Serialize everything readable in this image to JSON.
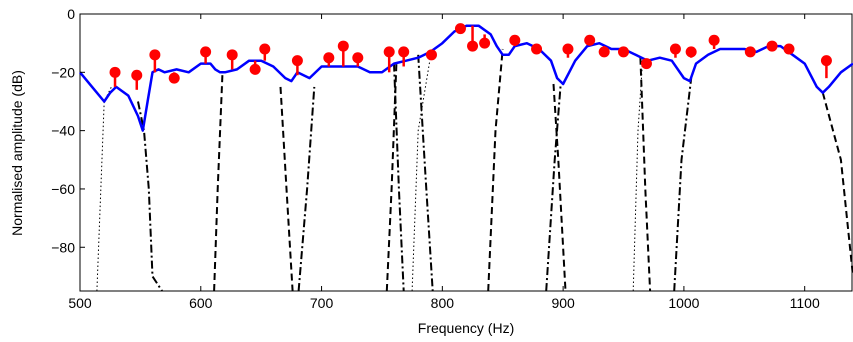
{
  "chart_data": {
    "type": "line",
    "title": "",
    "xlabel": "Frequency (Hz)",
    "ylabel": "Normalised amplitude (dB)",
    "xlim": [
      500,
      1140
    ],
    "ylim": [
      -95,
      0
    ],
    "x_ticks": [
      500,
      600,
      700,
      800,
      900,
      1000,
      1100
    ],
    "y_ticks": [
      0,
      -20,
      -40,
      -60,
      -80
    ],
    "x_tick_labels": [
      "500",
      "600",
      "700",
      "800",
      "900",
      "1000",
      "1100"
    ],
    "y_tick_labels": [
      "0",
      "−20",
      "−40",
      "−60",
      "−80"
    ],
    "colors": {
      "spectrum": "#0000ff",
      "markers": "#ff0000",
      "filters": "#000000"
    },
    "spectrum": {
      "x": [
        500,
        510,
        520,
        525,
        530,
        540,
        548,
        552,
        556,
        560,
        565,
        570,
        580,
        590,
        600,
        608,
        612,
        616,
        620,
        630,
        640,
        650,
        660,
        670,
        675,
        680,
        690,
        700,
        710,
        720,
        730,
        740,
        750,
        760,
        770,
        780,
        790,
        800,
        810,
        820,
        830,
        840,
        845,
        850,
        855,
        860,
        870,
        880,
        890,
        895,
        900,
        905,
        910,
        920,
        930,
        940,
        950,
        960,
        970,
        980,
        990,
        1000,
        1005,
        1010,
        1020,
        1030,
        1040,
        1050,
        1060,
        1070,
        1080,
        1090,
        1100,
        1110,
        1115,
        1120,
        1130,
        1140
      ],
      "y": [
        -20,
        -25,
        -30,
        -27,
        -25,
        -28,
        -35,
        -40,
        -30,
        -20,
        -19,
        -20,
        -19,
        -20,
        -17,
        -17,
        -19,
        -20,
        -20,
        -19,
        -16,
        -16,
        -18,
        -22,
        -23,
        -20,
        -22,
        -18,
        -18,
        -18,
        -18,
        -20,
        -20,
        -17,
        -16,
        -15,
        -13,
        -10,
        -6,
        -4,
        -4,
        -7,
        -11,
        -14,
        -14,
        -11,
        -10,
        -12,
        -16,
        -22,
        -24,
        -20,
        -16,
        -11,
        -10,
        -12,
        -12,
        -14,
        -16,
        -15,
        -16,
        -22,
        -23,
        -17,
        -14,
        -12,
        -12,
        -12,
        -13,
        -11,
        -11,
        -14,
        -17,
        -25,
        -27,
        -25,
        -20,
        -17
      ]
    },
    "peaks": {
      "x": [
        529,
        547,
        562,
        578,
        604,
        626,
        645,
        653,
        680,
        706,
        718,
        730,
        756,
        768,
        791,
        815,
        825,
        835,
        860,
        878,
        904,
        922,
        934,
        950,
        969,
        993,
        1006,
        1025,
        1055,
        1073,
        1087,
        1118
      ],
      "y": [
        -20,
        -21,
        -14,
        -22,
        -13,
        -14,
        -19,
        -12,
        -16,
        -15,
        -11,
        -15,
        -13,
        -13,
        -14,
        -5,
        -11,
        -10,
        -9,
        -12,
        -12,
        -9,
        -13,
        -13,
        -17,
        -12,
        -13,
        -9,
        -13,
        -11,
        -12,
        -16
      ],
      "stem_bottom": [
        -25,
        -26,
        -20,
        -20,
        -17,
        -19,
        -16,
        -16,
        -21,
        -18,
        -18,
        -18,
        -20,
        -18,
        -13,
        -6,
        -4,
        -7,
        -11,
        -11,
        -15,
        -10,
        -11,
        -12,
        -16,
        -15,
        -15,
        -12,
        -13,
        -12,
        -12,
        -22
      ]
    },
    "filters": [
      {
        "style": "dotted",
        "x": [
          514,
          520,
          526
        ],
        "y": [
          -95,
          -30,
          -25
        ]
      },
      {
        "style": "dashdot",
        "x": [
          548,
          553,
          557,
          560,
          568
        ],
        "y": [
          -30,
          -40,
          -60,
          -90,
          -95
        ]
      },
      {
        "style": "dashed",
        "x": [
          611,
          614,
          618
        ],
        "y": [
          -95,
          -60,
          -20
        ]
      },
      {
        "style": "dashed",
        "x": [
          666,
          671,
          676
        ],
        "y": [
          -25,
          -60,
          -95
        ]
      },
      {
        "style": "dashdot",
        "x": [
          681,
          688,
          694
        ],
        "y": [
          -95,
          -60,
          -25
        ]
      },
      {
        "style": "dashed",
        "x": [
          754,
          758,
          762
        ],
        "y": [
          -95,
          -60,
          -17
        ]
      },
      {
        "style": "dashdot",
        "x": [
          760,
          764,
          768
        ],
        "y": [
          -17,
          -60,
          -95
        ]
      },
      {
        "style": "dotted",
        "x": [
          775,
          780,
          790
        ],
        "y": [
          -95,
          -40,
          -15
        ]
      },
      {
        "style": "dashdot",
        "x": [
          780,
          786,
          792
        ],
        "y": [
          -14,
          -55,
          -95
        ]
      },
      {
        "style": "dashed",
        "x": [
          838,
          844,
          850
        ],
        "y": [
          -95,
          -40,
          -12
        ]
      },
      {
        "style": "dashdot",
        "x": [
          886,
          893,
          898
        ],
        "y": [
          -95,
          -50,
          -24
        ]
      },
      {
        "style": "dashed",
        "x": [
          892,
          896,
          902
        ],
        "y": [
          -24,
          -50,
          -95
        ]
      },
      {
        "style": "dotted",
        "x": [
          958,
          962,
          966
        ],
        "y": [
          -95,
          -40,
          -15
        ]
      },
      {
        "style": "dashed",
        "x": [
          964,
          968,
          972
        ],
        "y": [
          -15,
          -60,
          -95
        ]
      },
      {
        "style": "dashdot",
        "x": [
          992,
          998,
          1006
        ],
        "y": [
          -95,
          -50,
          -22
        ]
      },
      {
        "style": "dashed",
        "x": [
          1115,
          1130,
          1140
        ],
        "y": [
          -27,
          -50,
          -90
        ]
      }
    ]
  }
}
